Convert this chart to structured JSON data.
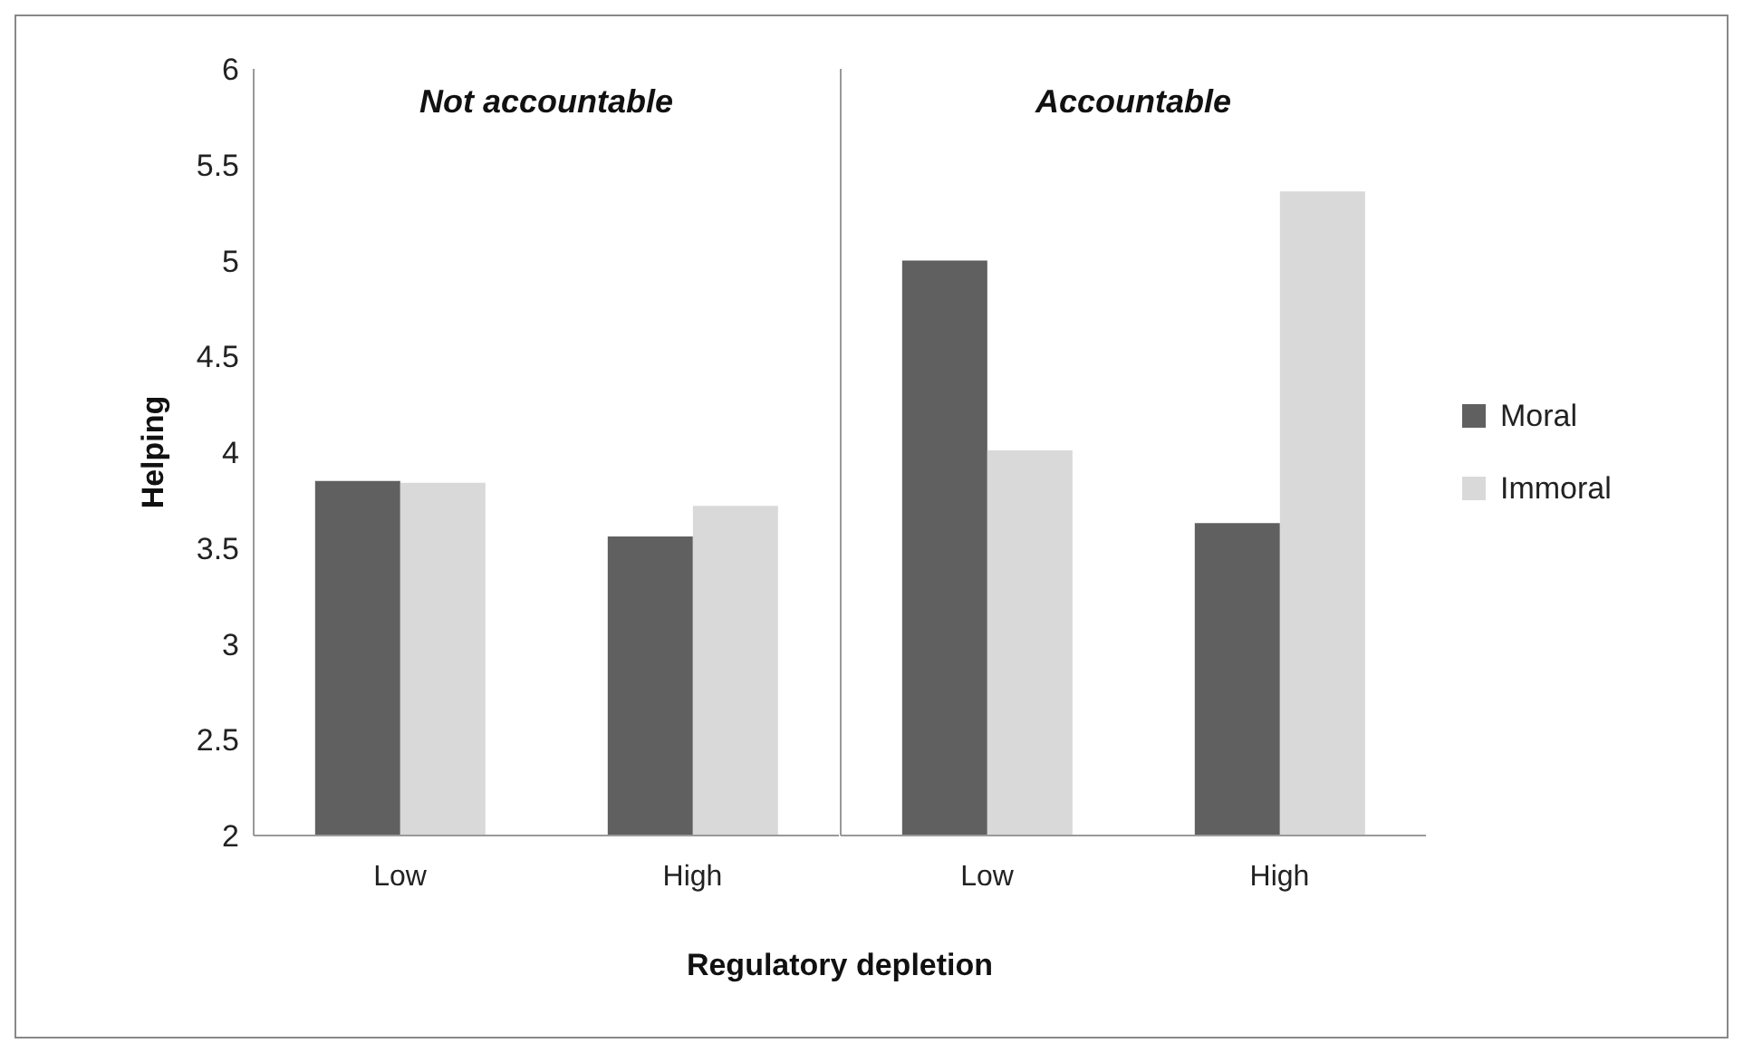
{
  "chart_data": [
    {
      "type": "bar",
      "title": "Not accountable",
      "xlabel": "Regulatory depletion",
      "ylabel": "Helping",
      "categories": [
        "Low",
        "High"
      ],
      "series": [
        {
          "color": "#606060",
          "values": [
            3.85,
            3.56
          ]
        },
        {
          "color": "#d9d9d9",
          "values": [
            3.84,
            3.72
          ]
        }
      ],
      "ylim": [
        2,
        6
      ],
      "yticks": [
        2,
        2.5,
        3,
        3.5,
        4,
        4.5,
        5,
        5.5,
        6
      ],
      "grid": false,
      "legend": false
    },
    {
      "type": "bar",
      "title": "Accountable",
      "categories": [
        "Low",
        "High"
      ],
      "series": [
        {
          "name": "Moral",
          "color": "#606060",
          "values": [
            5.0,
            3.63
          ]
        },
        {
          "name": "Immoral",
          "color": "#d9d9d9",
          "values": [
            4.01,
            5.36
          ]
        }
      ],
      "ylim": [
        2,
        6
      ],
      "yticks": [
        2,
        2.5,
        3,
        3.5,
        4,
        4.5,
        5,
        5.5,
        6
      ],
      "tick_labels": "x",
      "grid": false,
      "legend": "right"
    }
  ]
}
